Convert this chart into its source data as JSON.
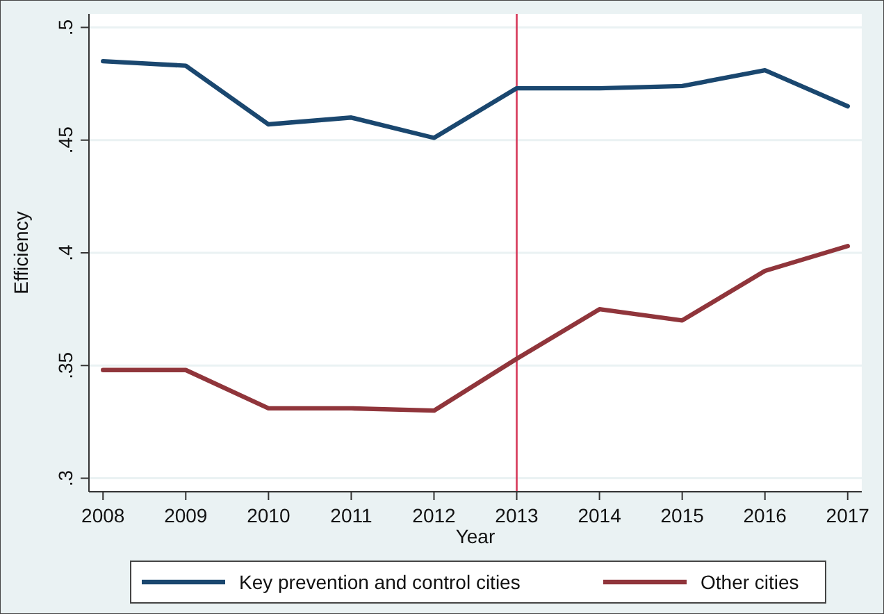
{
  "chart_data": {
    "type": "line",
    "xlabel": "Year",
    "ylabel": "Efficiency",
    "x": [
      2008,
      2009,
      2010,
      2011,
      2012,
      2013,
      2014,
      2015,
      2016,
      2017
    ],
    "series": [
      {
        "name": "Key prevention and control cities",
        "color": "#1a476f",
        "values": [
          0.485,
          0.483,
          0.457,
          0.46,
          0.451,
          0.473,
          0.473,
          0.474,
          0.481,
          0.465
        ]
      },
      {
        "name": "Other cities",
        "color": "#90353b",
        "values": [
          0.348,
          0.348,
          0.331,
          0.331,
          0.33,
          0.353,
          0.375,
          0.37,
          0.392,
          0.403
        ]
      }
    ],
    "xlim": [
      2007.83,
      2017.17
    ],
    "xticks": [
      2008,
      2009,
      2010,
      2011,
      2012,
      2013,
      2014,
      2015,
      2016,
      2017
    ],
    "ylim": [
      0.294,
      0.506
    ],
    "yticks": [
      {
        "value": 0.3,
        "label": ".3"
      },
      {
        "value": 0.35,
        "label": ".35"
      },
      {
        "value": 0.4,
        "label": ".4"
      },
      {
        "value": 0.45,
        "label": ".45"
      },
      {
        "value": 0.5,
        "label": ".5"
      }
    ],
    "ref_lines": [
      {
        "axis": "x",
        "value": 2013,
        "color": "#d6395a"
      }
    ],
    "grid": "y",
    "legend": "bottom",
    "line_style": "solid",
    "marker": "none"
  }
}
